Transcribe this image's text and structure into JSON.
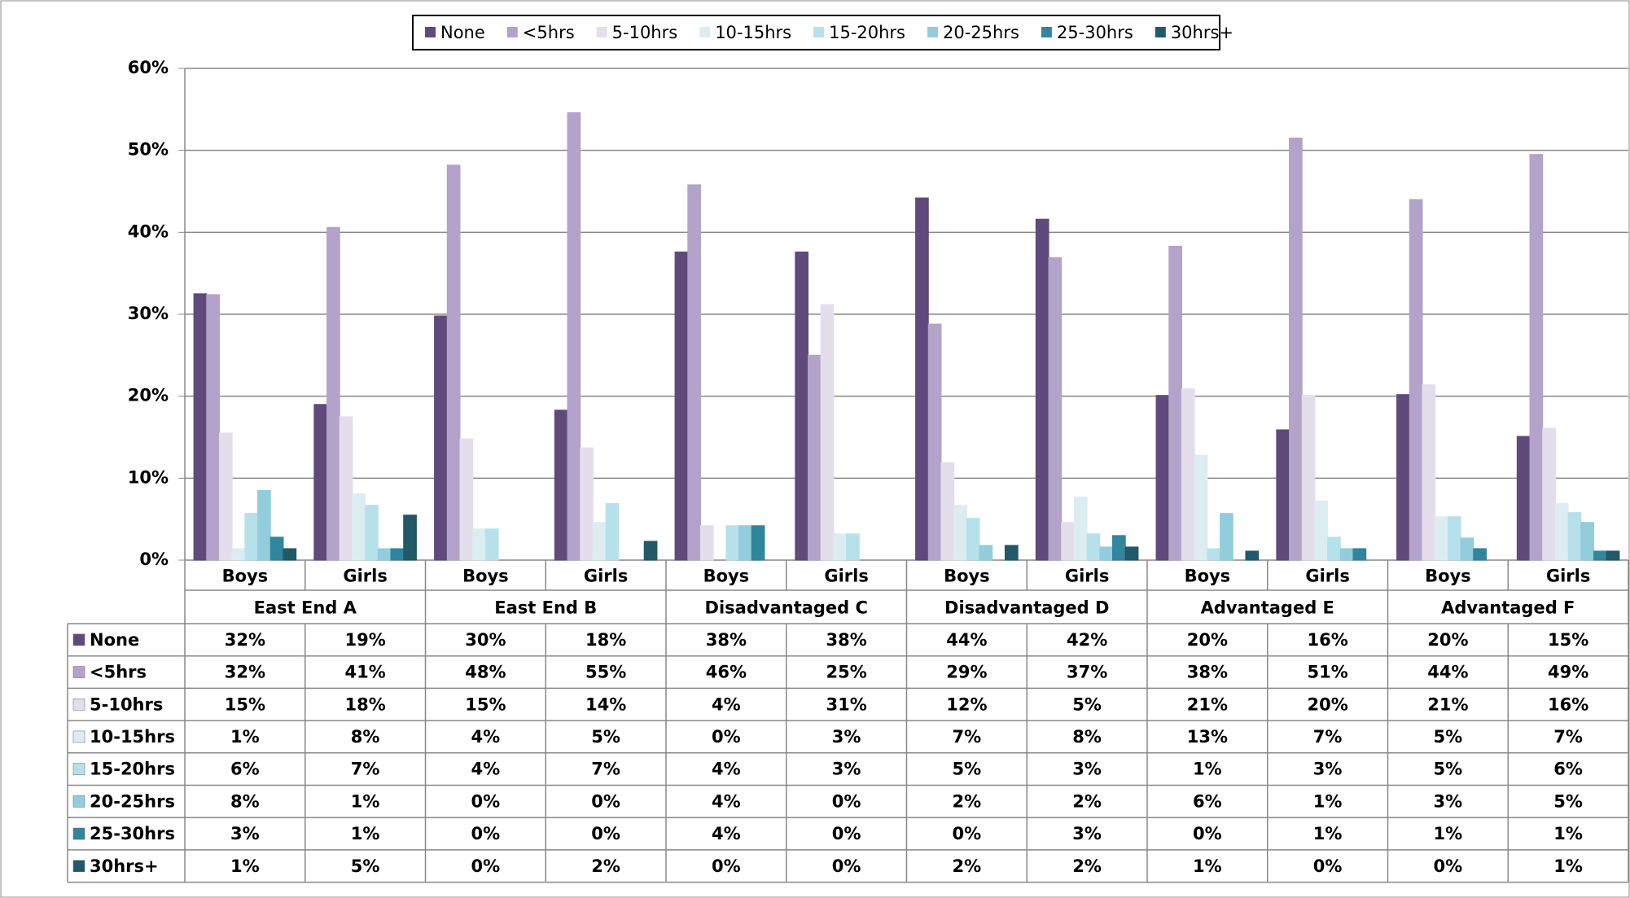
{
  "chart_data": {
    "type": "bar",
    "grid": true,
    "legend": "top",
    "categories": [
      "Boys",
      "Girls",
      "Boys",
      "Girls",
      "Boys",
      "Girls",
      "Boys",
      "Girls",
      "Boys",
      "Girls",
      "Boys",
      "Girls"
    ],
    "groups": [
      "East End A",
      "East End B",
      "Disadvantaged C",
      "Disadvantaged D",
      "Advantaged E",
      "Advantaged F"
    ],
    "ylim": [
      0,
      60
    ],
    "yticks": [
      {
        "value": 0,
        "label": "0%"
      },
      {
        "value": 10,
        "label": "10%"
      },
      {
        "value": 20,
        "label": "20%"
      },
      {
        "value": 30,
        "label": "30%"
      },
      {
        "value": 40,
        "label": "40%"
      },
      {
        "value": 50,
        "label": "50%"
      },
      {
        "value": 60,
        "label": "60%"
      }
    ],
    "series": [
      {
        "name": "None",
        "color": "#5f4a7b",
        "values": [
          32.5,
          19.0,
          29.8,
          18.3,
          37.6,
          37.6,
          44.2,
          41.6,
          20.1,
          15.9,
          20.2,
          15.1
        ],
        "value_labels": [
          "32%",
          "19%",
          "30%",
          "18%",
          "38%",
          "38%",
          "44%",
          "42%",
          "20%",
          "16%",
          "20%",
          "15%"
        ]
      },
      {
        "name": "<5hrs",
        "color": "#b3a2c9",
        "values": [
          32.4,
          40.6,
          48.2,
          54.6,
          45.8,
          25.0,
          28.8,
          36.9,
          38.3,
          51.5,
          44.0,
          49.5
        ],
        "value_labels": [
          "32%",
          "41%",
          "48%",
          "55%",
          "46%",
          "25%",
          "29%",
          "37%",
          "38%",
          "51%",
          "44%",
          "49%"
        ]
      },
      {
        "name": "5-10hrs",
        "color": "#e4deec",
        "values": [
          15.5,
          17.5,
          14.8,
          13.7,
          4.2,
          31.2,
          11.9,
          4.6,
          20.9,
          20.1,
          21.4,
          16.1
        ],
        "value_labels": [
          "15%",
          "18%",
          "15%",
          "14%",
          "4%",
          "31%",
          "12%",
          "5%",
          "21%",
          "20%",
          "21%",
          "16%"
        ]
      },
      {
        "name": "10-15hrs",
        "color": "#dcedf2",
        "values": [
          1.4,
          8.1,
          3.8,
          4.6,
          0,
          3.2,
          6.7,
          7.7,
          12.8,
          7.2,
          5.3,
          6.9
        ],
        "value_labels": [
          "1%",
          "8%",
          "4%",
          "5%",
          "0%",
          "3%",
          "7%",
          "8%",
          "13%",
          "7%",
          "5%",
          "7%"
        ]
      },
      {
        "name": "15-20hrs",
        "color": "#b7e1ea",
        "values": [
          5.7,
          6.7,
          3.8,
          6.9,
          4.2,
          3.2,
          5.1,
          3.2,
          1.4,
          2.8,
          5.3,
          5.8
        ],
        "value_labels": [
          "6%",
          "7%",
          "4%",
          "7%",
          "4%",
          "3%",
          "5%",
          "3%",
          "1%",
          "3%",
          "5%",
          "6%"
        ]
      },
      {
        "name": "20-25hrs",
        "color": "#92cddc",
        "values": [
          8.5,
          1.4,
          0,
          0,
          4.2,
          0,
          1.8,
          1.6,
          5.7,
          1.4,
          2.7,
          4.6
        ],
        "value_labels": [
          "8%",
          "1%",
          "0%",
          "0%",
          "4%",
          "0%",
          "2%",
          "2%",
          "6%",
          "1%",
          "3%",
          "5%"
        ]
      },
      {
        "name": "25-30hrs",
        "color": "#31859c",
        "values": [
          2.8,
          1.4,
          0,
          0,
          4.2,
          0,
          0,
          3.0,
          0,
          1.4,
          1.4,
          1.1
        ],
        "value_labels": [
          "3%",
          "1%",
          "0%",
          "0%",
          "4%",
          "0%",
          "0%",
          "3%",
          "0%",
          "1%",
          "1%",
          "1%"
        ]
      },
      {
        "name": "30hrs+",
        "color": "#215968",
        "values": [
          1.4,
          5.5,
          0,
          2.3,
          0,
          0,
          1.8,
          1.6,
          1.1,
          0,
          0,
          1.1
        ],
        "value_labels": [
          "1%",
          "5%",
          "0%",
          "2%",
          "0%",
          "0%",
          "2%",
          "2%",
          "1%",
          "0%",
          "0%",
          "1%"
        ]
      }
    ]
  }
}
